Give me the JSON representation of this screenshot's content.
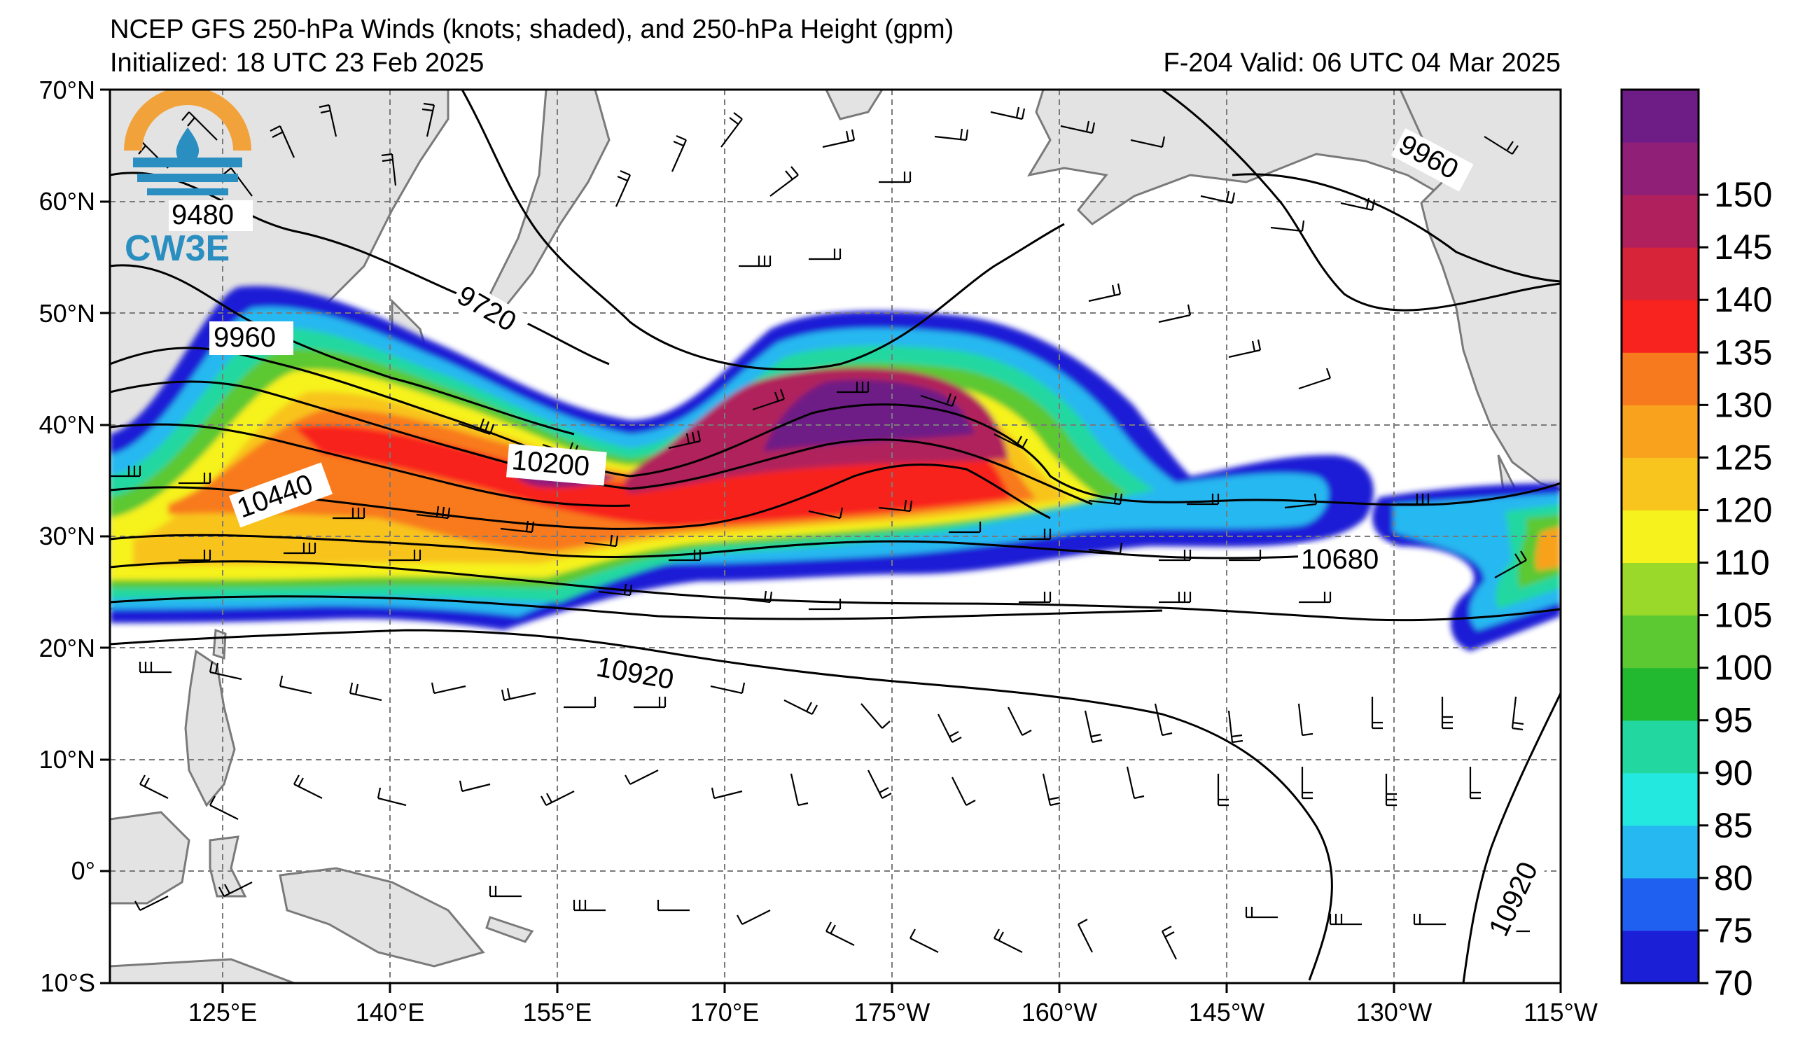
{
  "header": {
    "title_line1": "NCEP GFS 250-hPa Winds (knots; shaded), and 250-hPa Height (gpm)",
    "initialized": "Initialized: 18 UTC 23 Feb 2025",
    "valid": "F-204  Valid: 06 UTC 04 Mar 2025"
  },
  "logo": {
    "text": "CW3E",
    "accent_orange": "#f2a23a",
    "accent_blue": "#2a8ec0"
  },
  "map": {
    "lon_ticks": [
      "125°E",
      "140°E",
      "155°E",
      "170°E",
      "175°W",
      "160°W",
      "145°W",
      "130°W",
      "115°W"
    ],
    "lat_ticks": [
      "70°N",
      "60°N",
      "50°N",
      "40°N",
      "30°N",
      "20°N",
      "10°N",
      "0°",
      "10°S"
    ],
    "land_color": "#e3e3e3",
    "coast_color": "#7a7a7a",
    "contour_labels": [
      "9480",
      "9720",
      "9960",
      "9960",
      "10200",
      "10440",
      "10680",
      "10920",
      "10920"
    ]
  },
  "colorbar": {
    "levels": [
      "70",
      "75",
      "80",
      "85",
      "90",
      "95",
      "100",
      "105",
      "110",
      "120",
      "125",
      "130",
      "135",
      "140",
      "145",
      "150"
    ],
    "colors": [
      "#1b1fd6",
      "#2060f0",
      "#26b8f0",
      "#22e8e0",
      "#22d8a0",
      "#22b830",
      "#5cc832",
      "#9ad82a",
      "#f6f21e",
      "#f8c41e",
      "#f8a21e",
      "#f87a1e",
      "#f8221e",
      "#d82438",
      "#b0205c",
      "#901f78",
      "#6e1c86"
    ]
  }
}
